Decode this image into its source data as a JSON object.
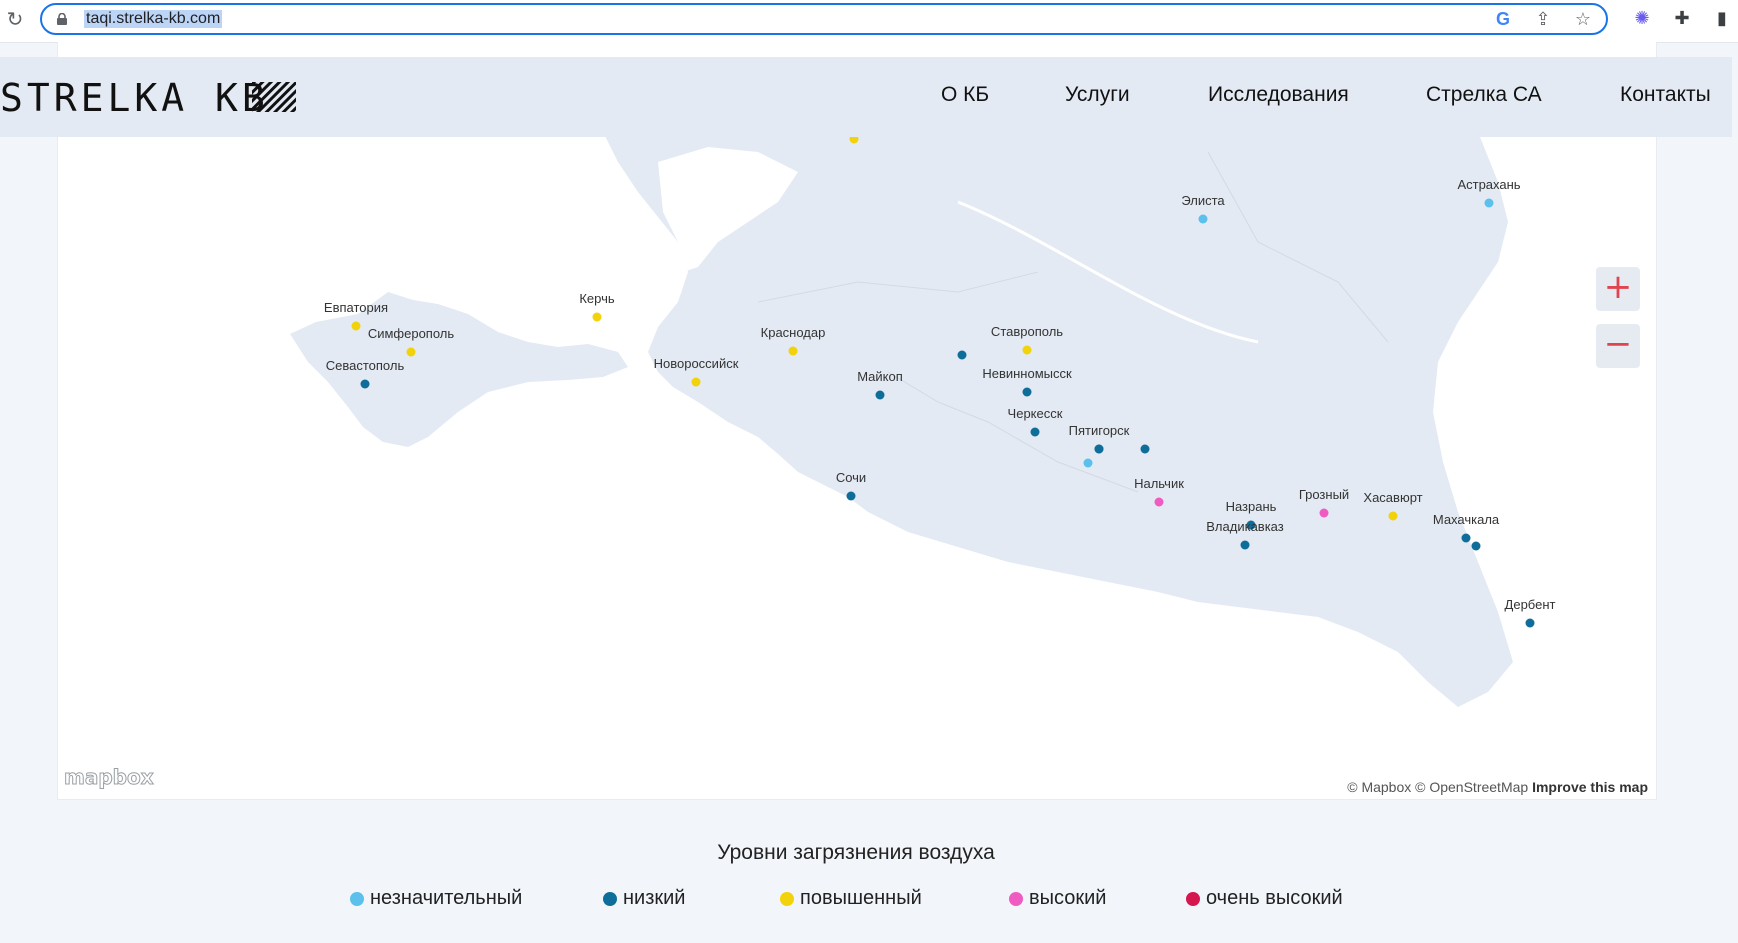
{
  "browser": {
    "url": "taqi.strelka-kb.com",
    "reload_icon": "reload-icon",
    "toolbar_icons": [
      "google-icon",
      "share-icon",
      "bookmark-star-icon",
      "extension-icon",
      "puzzle-icon",
      "side-panel-icon"
    ]
  },
  "header": {
    "logo": "STRELKA KB",
    "nav": [
      "О КБ",
      "Услуги",
      "Исследования",
      "Стрелка СА",
      "Контакты"
    ]
  },
  "map": {
    "zoom_in": "+",
    "zoom_out": "−",
    "mapbox_logo": "mapbox",
    "attribution": "© Mapbox © OpenStreetMap",
    "improve": "Improve this map",
    "cities": [
      {
        "name": "Евпатория",
        "level": "повышенный"
      },
      {
        "name": "Симферополь",
        "level": "повышенный"
      },
      {
        "name": "Севастополь",
        "level": "низкий"
      },
      {
        "name": "Керчь",
        "level": "повышенный"
      },
      {
        "name": "Краснодар",
        "level": "повышенный"
      },
      {
        "name": "Новороссийск",
        "level": "повышенный"
      },
      {
        "name": "Майкоп",
        "level": "низкий"
      },
      {
        "name": "Сочи",
        "level": "низкий"
      },
      {
        "name": "Ставрополь",
        "level": "повышенный"
      },
      {
        "name": "Невинномысск",
        "level": "низкий"
      },
      {
        "name": "Черкесск",
        "level": "низкий"
      },
      {
        "name": "Пятигорск",
        "level": "низкий"
      },
      {
        "name": "Нальчик",
        "level": "высокий"
      },
      {
        "name": "Назрань",
        "level": "низкий"
      },
      {
        "name": "Владикавказ",
        "level": "низкий"
      },
      {
        "name": "Грозный",
        "level": "высокий"
      },
      {
        "name": "Хасавюрт",
        "level": "повышенный"
      },
      {
        "name": "Махачкала",
        "level": "низкий"
      },
      {
        "name": "Дербент",
        "level": "низкий"
      },
      {
        "name": "Элиста",
        "level": "незначительный"
      },
      {
        "name": "Астрахань",
        "level": "незначительный"
      }
    ]
  },
  "legend": {
    "title": "Уровни загрязнения воздуха",
    "items": [
      {
        "label": "незначительный",
        "color": "#5bc0eb"
      },
      {
        "label": "низкий",
        "color": "#0f6e99"
      },
      {
        "label": "повышенный",
        "color": "#f2d20a"
      },
      {
        "label": "высокий",
        "color": "#f05bc2"
      },
      {
        "label": "очень высокий",
        "color": "#d6174f"
      }
    ]
  }
}
